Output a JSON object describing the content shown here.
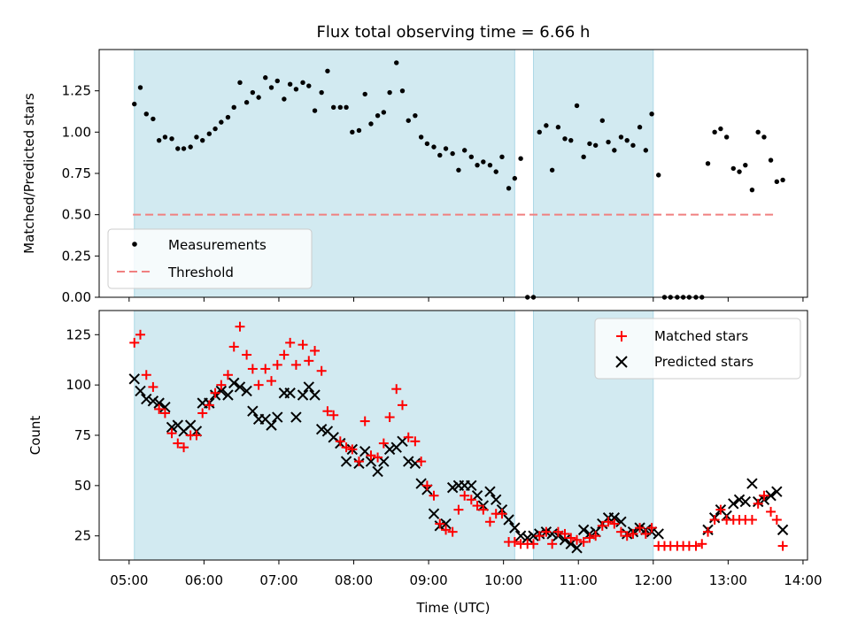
{
  "chart_data": {
    "type": "scatter",
    "title": "Flux total observing time = 6.66 h",
    "xlabel": "Time (UTC)",
    "x_ticks": [
      "05:00",
      "06:00",
      "07:00",
      "08:00",
      "09:00",
      "10:00",
      "11:00",
      "12:00",
      "13:00",
      "14:00"
    ],
    "xlim_hours": [
      4.6,
      14.06
    ],
    "shaded_spans_hours": [
      [
        5.07,
        10.15
      ],
      [
        10.4,
        12.0
      ]
    ],
    "colors": {
      "shade": "#add8e6",
      "measure": "#000000",
      "threshold": "#f08080",
      "matched": "#ff0000",
      "predicted": "#000000"
    },
    "top": {
      "ylabel": "Matched/Predicted stars",
      "ylim": [
        0,
        1.5
      ],
      "y_ticks": [
        "0.00",
        "0.25",
        "0.50",
        "0.75",
        "1.00",
        "1.25"
      ],
      "legend": {
        "placement": "lower-left",
        "measurements": "Measurements",
        "threshold": "Threshold"
      },
      "threshold": {
        "value": 0.5,
        "x_range": [
          5.05,
          13.62
        ]
      },
      "measurements": [
        [
          5.07,
          1.17
        ],
        [
          5.15,
          1.27
        ],
        [
          5.23,
          1.11
        ],
        [
          5.32,
          1.08
        ],
        [
          5.4,
          0.95
        ],
        [
          5.48,
          0.97
        ],
        [
          5.57,
          0.96
        ],
        [
          5.65,
          0.9
        ],
        [
          5.73,
          0.9
        ],
        [
          5.82,
          0.91
        ],
        [
          5.9,
          0.97
        ],
        [
          5.98,
          0.95
        ],
        [
          6.07,
          0.99
        ],
        [
          6.15,
          1.02
        ],
        [
          6.23,
          1.06
        ],
        [
          6.32,
          1.09
        ],
        [
          6.4,
          1.15
        ],
        [
          6.48,
          1.3
        ],
        [
          6.57,
          1.18
        ],
        [
          6.65,
          1.24
        ],
        [
          6.73,
          1.21
        ],
        [
          6.82,
          1.33
        ],
        [
          6.9,
          1.27
        ],
        [
          6.98,
          1.31
        ],
        [
          7.07,
          1.2
        ],
        [
          7.15,
          1.29
        ],
        [
          7.23,
          1.26
        ],
        [
          7.32,
          1.3
        ],
        [
          7.4,
          1.28
        ],
        [
          7.48,
          1.13
        ],
        [
          7.57,
          1.24
        ],
        [
          7.65,
          1.37
        ],
        [
          7.73,
          1.15
        ],
        [
          7.82,
          1.15
        ],
        [
          7.9,
          1.15
        ],
        [
          7.98,
          1.0
        ],
        [
          8.07,
          1.01
        ],
        [
          8.15,
          1.23
        ],
        [
          8.23,
          1.05
        ],
        [
          8.32,
          1.1
        ],
        [
          8.4,
          1.12
        ],
        [
          8.48,
          1.24
        ],
        [
          8.57,
          1.42
        ],
        [
          8.65,
          1.25
        ],
        [
          8.73,
          1.07
        ],
        [
          8.82,
          1.1
        ],
        [
          8.9,
          0.97
        ],
        [
          8.98,
          0.93
        ],
        [
          9.07,
          0.91
        ],
        [
          9.15,
          0.86
        ],
        [
          9.23,
          0.9
        ],
        [
          9.32,
          0.87
        ],
        [
          9.4,
          0.77
        ],
        [
          9.48,
          0.89
        ],
        [
          9.57,
          0.85
        ],
        [
          9.65,
          0.8
        ],
        [
          9.73,
          0.82
        ],
        [
          9.82,
          0.8
        ],
        [
          9.9,
          0.76
        ],
        [
          9.98,
          0.85
        ],
        [
          10.07,
          0.66
        ],
        [
          10.15,
          0.72
        ],
        [
          10.23,
          0.84
        ],
        [
          10.32,
          0.0
        ],
        [
          10.4,
          0.0
        ],
        [
          10.48,
          1.0
        ],
        [
          10.57,
          1.04
        ],
        [
          10.65,
          0.77
        ],
        [
          10.73,
          1.03
        ],
        [
          10.82,
          0.96
        ],
        [
          10.9,
          0.95
        ],
        [
          10.98,
          1.16
        ],
        [
          11.07,
          0.85
        ],
        [
          11.15,
          0.93
        ],
        [
          11.23,
          0.92
        ],
        [
          11.32,
          1.07
        ],
        [
          11.4,
          0.94
        ],
        [
          11.48,
          0.89
        ],
        [
          11.57,
          0.97
        ],
        [
          11.65,
          0.95
        ],
        [
          11.73,
          0.92
        ],
        [
          11.82,
          1.03
        ],
        [
          11.9,
          0.89
        ],
        [
          11.98,
          1.11
        ],
        [
          12.07,
          0.74
        ],
        [
          12.15,
          0.0
        ],
        [
          12.23,
          0.0
        ],
        [
          12.32,
          0.0
        ],
        [
          12.4,
          0.0
        ],
        [
          12.48,
          0.0
        ],
        [
          12.57,
          0.0
        ],
        [
          12.65,
          0.0
        ],
        [
          12.73,
          0.81
        ],
        [
          12.82,
          1.0
        ],
        [
          12.9,
          1.02
        ],
        [
          12.98,
          0.97
        ],
        [
          13.07,
          0.78
        ],
        [
          13.15,
          0.76
        ],
        [
          13.23,
          0.8
        ],
        [
          13.32,
          0.65
        ],
        [
          13.4,
          1.0
        ],
        [
          13.48,
          0.97
        ],
        [
          13.57,
          0.83
        ],
        [
          13.65,
          0.7
        ],
        [
          13.73,
          0.71
        ]
      ]
    },
    "bottom": {
      "ylabel": "Count",
      "ylim": [
        13,
        137
      ],
      "y_ticks": [
        "25",
        "50",
        "75",
        "100",
        "125"
      ],
      "legend": {
        "placement": "upper-right",
        "matched": "Matched stars",
        "predicted": "Predicted stars"
      },
      "matched": [
        [
          5.07,
          121
        ],
        [
          5.15,
          125
        ],
        [
          5.23,
          105
        ],
        [
          5.32,
          99
        ],
        [
          5.4,
          88
        ],
        [
          5.48,
          86
        ],
        [
          5.57,
          76
        ],
        [
          5.65,
          71
        ],
        [
          5.73,
          69
        ],
        [
          5.82,
          75
        ],
        [
          5.9,
          75
        ],
        [
          5.98,
          86
        ],
        [
          6.07,
          90
        ],
        [
          6.15,
          96
        ],
        [
          6.23,
          100
        ],
        [
          6.32,
          105
        ],
        [
          6.4,
          119
        ],
        [
          6.48,
          129
        ],
        [
          6.57,
          115
        ],
        [
          6.65,
          108
        ],
        [
          6.73,
          100
        ],
        [
          6.82,
          108
        ],
        [
          6.9,
          102
        ],
        [
          6.98,
          110
        ],
        [
          7.07,
          115
        ],
        [
          7.15,
          121
        ],
        [
          7.23,
          110
        ],
        [
          7.32,
          120
        ],
        [
          7.4,
          112
        ],
        [
          7.48,
          117
        ],
        [
          7.57,
          107
        ],
        [
          7.65,
          87
        ],
        [
          7.73,
          85
        ],
        [
          7.82,
          72
        ],
        [
          7.9,
          69
        ],
        [
          7.98,
          68
        ],
        [
          8.07,
          62
        ],
        [
          8.15,
          82
        ],
        [
          8.23,
          65
        ],
        [
          8.32,
          64
        ],
        [
          8.4,
          71
        ],
        [
          8.48,
          84
        ],
        [
          8.57,
          98
        ],
        [
          8.65,
          90
        ],
        [
          8.73,
          74
        ],
        [
          8.82,
          72
        ],
        [
          8.9,
          62
        ],
        [
          8.98,
          50
        ],
        [
          9.07,
          45
        ],
        [
          9.15,
          31
        ],
        [
          9.23,
          28
        ],
        [
          9.32,
          27
        ],
        [
          9.4,
          38
        ],
        [
          9.48,
          45
        ],
        [
          9.57,
          43
        ],
        [
          9.65,
          40
        ],
        [
          9.73,
          38
        ],
        [
          9.82,
          32
        ],
        [
          9.9,
          36
        ],
        [
          9.98,
          36
        ],
        [
          10.07,
          22
        ],
        [
          10.15,
          22
        ],
        [
          10.23,
          21
        ],
        [
          10.32,
          21
        ],
        [
          10.4,
          21
        ],
        [
          10.48,
          25
        ],
        [
          10.57,
          27
        ],
        [
          10.65,
          21
        ],
        [
          10.73,
          27
        ],
        [
          10.82,
          26
        ],
        [
          10.9,
          24
        ],
        [
          10.98,
          23
        ],
        [
          11.07,
          22
        ],
        [
          11.15,
          24
        ],
        [
          11.23,
          25
        ],
        [
          11.32,
          30
        ],
        [
          11.4,
          32
        ],
        [
          11.48,
          31
        ],
        [
          11.57,
          27
        ],
        [
          11.65,
          25
        ],
        [
          11.73,
          26
        ],
        [
          11.82,
          29
        ],
        [
          11.9,
          26
        ],
        [
          11.98,
          29
        ],
        [
          12.07,
          20
        ],
        [
          12.15,
          20
        ],
        [
          12.23,
          20
        ],
        [
          12.32,
          20
        ],
        [
          12.4,
          20
        ],
        [
          12.48,
          20
        ],
        [
          12.57,
          20
        ],
        [
          12.65,
          21
        ],
        [
          12.73,
          27
        ],
        [
          12.82,
          33
        ],
        [
          12.9,
          38
        ],
        [
          12.98,
          33
        ],
        [
          13.07,
          33
        ],
        [
          13.15,
          33
        ],
        [
          13.23,
          33
        ],
        [
          13.32,
          33
        ],
        [
          13.4,
          41
        ],
        [
          13.48,
          45
        ],
        [
          13.57,
          37
        ],
        [
          13.65,
          33
        ],
        [
          13.73,
          20
        ]
      ],
      "predicted": [
        [
          5.07,
          103
        ],
        [
          5.15,
          97
        ],
        [
          5.23,
          93
        ],
        [
          5.32,
          92
        ],
        [
          5.4,
          91
        ],
        [
          5.48,
          89
        ],
        [
          5.57,
          79
        ],
        [
          5.65,
          80
        ],
        [
          5.73,
          77
        ],
        [
          5.82,
          80
        ],
        [
          5.9,
          77
        ],
        [
          5.98,
          91
        ],
        [
          6.07,
          91
        ],
        [
          6.15,
          95
        ],
        [
          6.23,
          97
        ],
        [
          6.32,
          95
        ],
        [
          6.4,
          101
        ],
        [
          6.48,
          99
        ],
        [
          6.57,
          97
        ],
        [
          6.65,
          87
        ],
        [
          6.73,
          83
        ],
        [
          6.82,
          83
        ],
        [
          6.9,
          80
        ],
        [
          6.98,
          84
        ],
        [
          7.07,
          96
        ],
        [
          7.15,
          96
        ],
        [
          7.23,
          84
        ],
        [
          7.32,
          95
        ],
        [
          7.4,
          99
        ],
        [
          7.48,
          95
        ],
        [
          7.57,
          78
        ],
        [
          7.65,
          77
        ],
        [
          7.73,
          74
        ],
        [
          7.82,
          71
        ],
        [
          7.9,
          62
        ],
        [
          7.98,
          68
        ],
        [
          8.07,
          61
        ],
        [
          8.15,
          67
        ],
        [
          8.23,
          62
        ],
        [
          8.32,
          57
        ],
        [
          8.4,
          62
        ],
        [
          8.48,
          68
        ],
        [
          8.57,
          69
        ],
        [
          8.65,
          72
        ],
        [
          8.73,
          62
        ],
        [
          8.82,
          61
        ],
        [
          8.9,
          51
        ],
        [
          8.98,
          48
        ],
        [
          9.07,
          36
        ],
        [
          9.15,
          30
        ],
        [
          9.23,
          31
        ],
        [
          9.32,
          49
        ],
        [
          9.4,
          50
        ],
        [
          9.48,
          50
        ],
        [
          9.57,
          50
        ],
        [
          9.65,
          45
        ],
        [
          9.73,
          40
        ],
        [
          9.82,
          47
        ],
        [
          9.9,
          43
        ],
        [
          9.98,
          38
        ],
        [
          10.07,
          33
        ],
        [
          10.15,
          29
        ],
        [
          10.23,
          25
        ],
        [
          10.32,
          24
        ],
        [
          10.4,
          25
        ],
        [
          10.48,
          26
        ],
        [
          10.57,
          27
        ],
        [
          10.65,
          26
        ],
        [
          10.73,
          25
        ],
        [
          10.82,
          23
        ],
        [
          10.9,
          21
        ],
        [
          10.98,
          19
        ],
        [
          11.07,
          28
        ],
        [
          11.15,
          26
        ],
        [
          11.23,
          27
        ],
        [
          11.32,
          31
        ],
        [
          11.4,
          34
        ],
        [
          11.48,
          34
        ],
        [
          11.57,
          32
        ],
        [
          11.65,
          26
        ],
        [
          11.73,
          27
        ],
        [
          11.82,
          29
        ],
        [
          11.9,
          28
        ],
        [
          11.98,
          27
        ],
        [
          12.07,
          26
        ],
        [
          12.73,
          28
        ],
        [
          12.82,
          34
        ],
        [
          12.9,
          38
        ],
        [
          12.98,
          35
        ],
        [
          13.07,
          41
        ],
        [
          13.15,
          43
        ],
        [
          13.23,
          42
        ],
        [
          13.32,
          51
        ],
        [
          13.4,
          42
        ],
        [
          13.48,
          43
        ],
        [
          13.57,
          45
        ],
        [
          13.65,
          47
        ],
        [
          13.73,
          28
        ]
      ]
    }
  }
}
